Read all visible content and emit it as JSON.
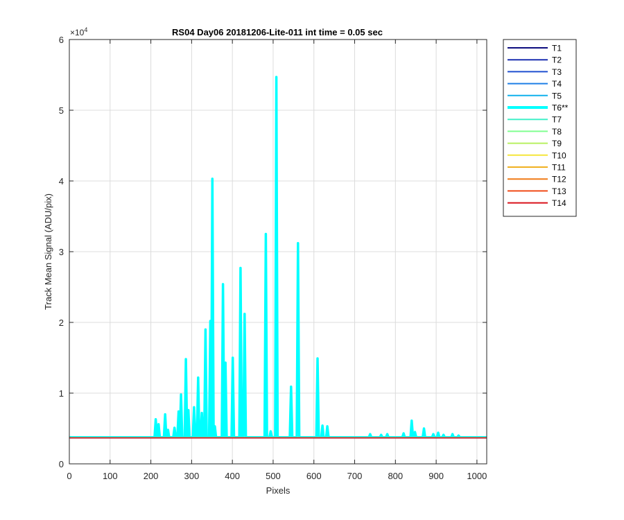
{
  "chart_data": {
    "type": "line",
    "title": "RS04 Day06 20181206-Lite-011 int time = 0.05 sec",
    "xlabel": "Pixels",
    "ylabel": "Track Mean Signal (ADU/pix)",
    "y_exponent_label": "×10",
    "y_exponent_power": "4",
    "xlim": [
      0,
      1024
    ],
    "ylim": [
      0,
      60000
    ],
    "grid": true,
    "legend_position": "outside top-right",
    "x_ticks": [
      "0",
      "100",
      "200",
      "300",
      "400",
      "500",
      "600",
      "700",
      "800",
      "900",
      "1000"
    ],
    "y_ticks": [
      "0",
      "1",
      "2",
      "3",
      "4",
      "5",
      "6"
    ],
    "baseline_series": [
      {
        "name": "T1",
        "color": "#0c0c7e",
        "level": 3650
      },
      {
        "name": "T2",
        "color": "#1a2fb0",
        "level": 3660
      },
      {
        "name": "T3",
        "color": "#1f4fd0",
        "level": 3670
      },
      {
        "name": "T4",
        "color": "#1e7fe6",
        "level": 3680
      },
      {
        "name": "T5",
        "color": "#10b0ec",
        "level": 3690
      },
      {
        "name": "T7",
        "color": "#40f0c8",
        "level": 3700
      },
      {
        "name": "T8",
        "color": "#80ff90",
        "level": 3705
      },
      {
        "name": "T9",
        "color": "#b8f060",
        "level": 3710
      },
      {
        "name": "T10",
        "color": "#f5e63a",
        "level": 3715
      },
      {
        "name": "T11",
        "color": "#f0b020",
        "level": 3720
      },
      {
        "name": "T12",
        "color": "#f07a15",
        "level": 3700
      },
      {
        "name": "T13",
        "color": "#f04a18",
        "level": 3690
      },
      {
        "name": "T14",
        "color": "#d9121a",
        "level": 3650
      }
    ],
    "highlight_series": {
      "name": "T6**",
      "color": "#00ffff",
      "baseline": 3750,
      "peaks": [
        [
          212,
          6300
        ],
        [
          219,
          5600
        ],
        [
          235,
          7000
        ],
        [
          242,
          4800
        ],
        [
          258,
          5100
        ],
        [
          268,
          7400
        ],
        [
          274,
          9800
        ],
        [
          286,
          14800
        ],
        [
          292,
          7600
        ],
        [
          306,
          8000
        ],
        [
          316,
          12200
        ],
        [
          325,
          7200
        ],
        [
          334,
          19000
        ],
        [
          346,
          20200
        ],
        [
          351,
          40300
        ],
        [
          357,
          5300
        ],
        [
          377,
          25400
        ],
        [
          383,
          14300
        ],
        [
          401,
          15000
        ],
        [
          420,
          27700
        ],
        [
          430,
          21200
        ],
        [
          482,
          32500
        ],
        [
          494,
          4600
        ],
        [
          508,
          54700
        ],
        [
          544,
          10900
        ],
        [
          561,
          31200
        ],
        [
          609,
          14900
        ],
        [
          621,
          5400
        ],
        [
          633,
          5300
        ],
        [
          738,
          4200
        ],
        [
          765,
          4100
        ],
        [
          780,
          4200
        ],
        [
          820,
          4300
        ],
        [
          840,
          6100
        ],
        [
          848,
          4500
        ],
        [
          870,
          5000
        ],
        [
          893,
          4200
        ],
        [
          905,
          4400
        ],
        [
          918,
          4100
        ],
        [
          940,
          4200
        ],
        [
          955,
          4000
        ]
      ]
    },
    "legend": [
      "T1",
      "T2",
      "T3",
      "T4",
      "T5",
      "T6**",
      "T7",
      "T8",
      "T9",
      "T10",
      "T11",
      "T12",
      "T13",
      "T14"
    ],
    "legend_colors": [
      "#0c0c7e",
      "#1a2fb0",
      "#1f4fd0",
      "#1e7fe6",
      "#10b0ec",
      "#00ffff",
      "#40f0c8",
      "#80ff90",
      "#b8f060",
      "#f5e63a",
      "#f0b020",
      "#f07a15",
      "#f04a18",
      "#d9121a"
    ]
  }
}
